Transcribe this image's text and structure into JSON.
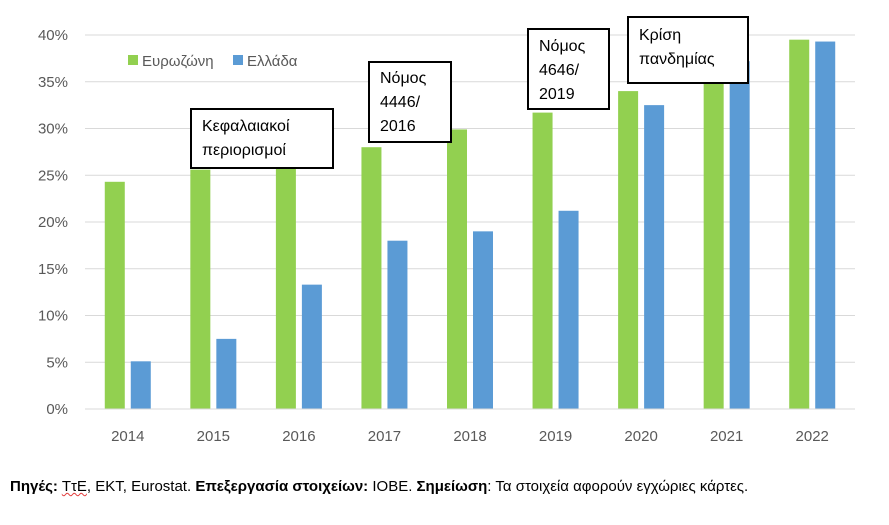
{
  "chart_data": {
    "type": "bar",
    "categories": [
      "2014",
      "2015",
      "2016",
      "2017",
      "2018",
      "2019",
      "2020",
      "2021",
      "2022"
    ],
    "series": [
      {
        "name": "Ευρωζώνη",
        "color": "#92d050",
        "values": [
          24.3,
          25.6,
          26.9,
          28.0,
          29.9,
          31.7,
          34.0,
          36.5,
          39.5
        ]
      },
      {
        "name": "Ελλάδα",
        "color": "#5b9bd5",
        "values": [
          5.1,
          7.5,
          13.3,
          18.0,
          19.0,
          21.2,
          32.5,
          37.2,
          39.3
        ]
      }
    ],
    "ylim": [
      0,
      40
    ],
    "yticks": [
      "0%",
      "5%",
      "10%",
      "15%",
      "20%",
      "25%",
      "30%",
      "35%",
      "40%"
    ],
    "grid": true,
    "legend_position": "top-left",
    "annotations": [
      {
        "lines": [
          "Κεφαλαιακοί",
          "περιορισμοί"
        ]
      },
      {
        "lines": [
          "Νόμος",
          "4446/",
          "2016"
        ]
      },
      {
        "lines": [
          "Νόμος",
          "4646/",
          "2019"
        ]
      },
      {
        "lines": [
          "Κρίση",
          "πανδημίας"
        ]
      }
    ]
  },
  "footer": {
    "sources_label": "Πηγές:",
    "sources_first": "ΤτΕ",
    "sources_rest": ", ΕΚΤ, Eurostat. ",
    "processing_label": "Επεξεργασία στοιχείων:",
    "processing_value": " ΙΟΒΕ. ",
    "note_label": "Σημείωση",
    "note_value": ": Τα στοιχεία αφορούν εγχώριες κάρτες."
  }
}
